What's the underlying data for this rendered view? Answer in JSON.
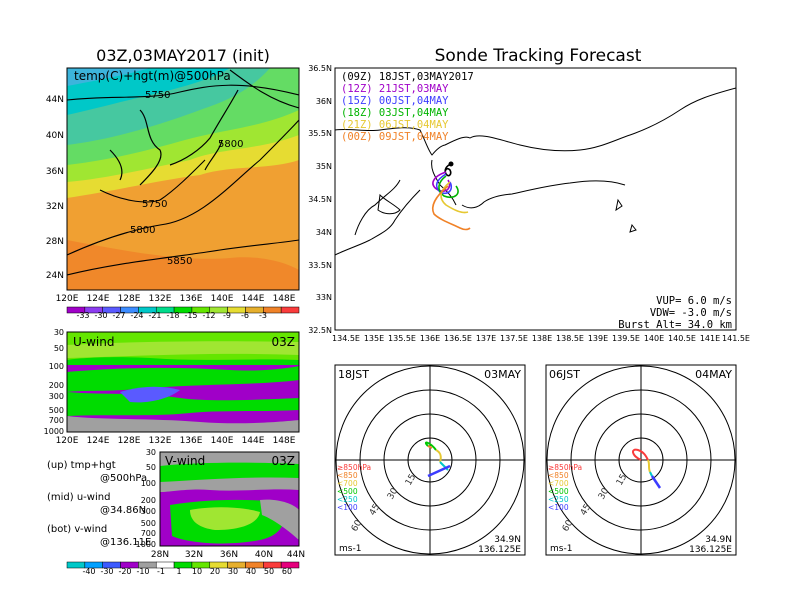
{
  "left_title": "03Z,03MAY2017 (init)",
  "right_title": "Sonde Tracking Forecast",
  "map_panel": {
    "label": "temp(C)+hgt(m)@500hPa",
    "lat_ticks": [
      "44N",
      "40N",
      "36N",
      "32N",
      "28N",
      "24N"
    ],
    "lon_ticks": [
      "120E",
      "124E",
      "128E",
      "132E",
      "136E",
      "140E",
      "144E",
      "148E"
    ],
    "contour_labels": [
      "5750",
      "5800",
      "5750",
      "5800",
      "5850"
    ],
    "colorbar_ticks": [
      "-33",
      "-30",
      "-27",
      "-24",
      "-21",
      "-18",
      "-15",
      "-12",
      "-9",
      "-6",
      "-3"
    ],
    "colorbar_colors": [
      "#a000c8",
      "#8c3cf0",
      "#5a5aff",
      "#3c8cff",
      "#00c8c8",
      "#00dc8c",
      "#00dc00",
      "#64e600",
      "#a0e632",
      "#e6dc32",
      "#e6af2d",
      "#f08228",
      "#fa3c3c"
    ]
  },
  "u_panel": {
    "label": "U-wind",
    "time": "03Z",
    "p_ticks": [
      "30",
      "50",
      "100",
      "200",
      "300",
      "500",
      "700",
      "1000"
    ],
    "lon_ticks": [
      "120E",
      "124E",
      "128E",
      "132E",
      "136E",
      "140E",
      "144E",
      "148E"
    ]
  },
  "v_panel": {
    "label": "V-wind",
    "time": "03Z",
    "p_ticks": [
      "30",
      "50",
      "100",
      "200",
      "300",
      "500",
      "700",
      "1000"
    ],
    "lat_ticks": [
      "28N",
      "32N",
      "36N",
      "40N",
      "44N"
    ],
    "colorbar_ticks": [
      "-40",
      "-30",
      "-20",
      "-10",
      "-1",
      "1",
      "10",
      "20",
      "30",
      "40",
      "50",
      "60"
    ],
    "colorbar_colors": [
      "#00c8c8",
      "#00a0ff",
      "#3c5aff",
      "#a000c8",
      "#a0a0a0",
      "#ffffff",
      "#00dc00",
      "#64e600",
      "#e6dc32",
      "#e6af2d",
      "#f08228",
      "#fa3c3c",
      "#e6007d"
    ]
  },
  "legend_notes": [
    "(up) tmp+hgt",
    "@500hPa",
    "(mid) u-wind",
    "@34.86N",
    "(bot) v-wind",
    "@136.11E"
  ],
  "tracking": {
    "legend": [
      {
        "text": "(09Z)  18JST,03MAY2017",
        "color": "#000000"
      },
      {
        "text": "(12Z)  21JST,03MAY",
        "color": "#a000c8"
      },
      {
        "text": "(15Z)  00JST,04MAY",
        "color": "#3c3cff"
      },
      {
        "text": "(18Z)  03JST,04MAY",
        "color": "#00b400"
      },
      {
        "text": "(21Z)  06JST,04MAY",
        "color": "#e6c832"
      },
      {
        "text": "(00Z)  09JST,04MAY",
        "color": "#f08228"
      }
    ],
    "lat_ticks": [
      "36.5N",
      "36N",
      "35.5N",
      "35N",
      "34.5N",
      "34N",
      "33.5N",
      "33N",
      "32.5N"
    ],
    "lon_ticks": [
      "134.5E",
      "135E",
      "135.5E",
      "136E",
      "136.5E",
      "137E",
      "137.5E",
      "138E",
      "138.5E",
      "139E",
      "139.5E",
      "140E",
      "140.5E",
      "141E",
      "141.5E"
    ],
    "params": [
      "VUP=  6.0 m/s",
      "VDW= -3.0 m/s",
      "Burst Alt= 34.0 km"
    ]
  },
  "hodo_left": {
    "time": "18JST",
    "date": "03MAY",
    "ring_labels": [
      "15",
      "30",
      "45",
      "60"
    ],
    "level_legend": [
      {
        "text": "≥850hPa",
        "color": "#fa3c3c"
      },
      {
        "text": "<850",
        "color": "#f08228"
      },
      {
        "text": "<700",
        "color": "#e6c832"
      },
      {
        "text": "<500",
        "color": "#00c800"
      },
      {
        "text": "<250",
        "color": "#00c8c8"
      },
      {
        "text": "<100",
        "color": "#3c3cff"
      }
    ],
    "lat": "34.9N",
    "lon": "136.125E",
    "unit": "ms-1"
  },
  "hodo_right": {
    "time": "06JST",
    "date": "04MAY",
    "ring_labels": [
      "15",
      "30",
      "45",
      "60"
    ],
    "level_legend": [
      {
        "text": "≥850hPa",
        "color": "#fa3c3c"
      },
      {
        "text": "<850",
        "color": "#f08228"
      },
      {
        "text": "<700",
        "color": "#e6c832"
      },
      {
        "text": "<500",
        "color": "#00c800"
      },
      {
        "text": "<250",
        "color": "#00c8c8"
      },
      {
        "text": "<100",
        "color": "#3c3cff"
      }
    ],
    "lat": "34.9N",
    "lon": "136.125E",
    "unit": "ms-1"
  }
}
